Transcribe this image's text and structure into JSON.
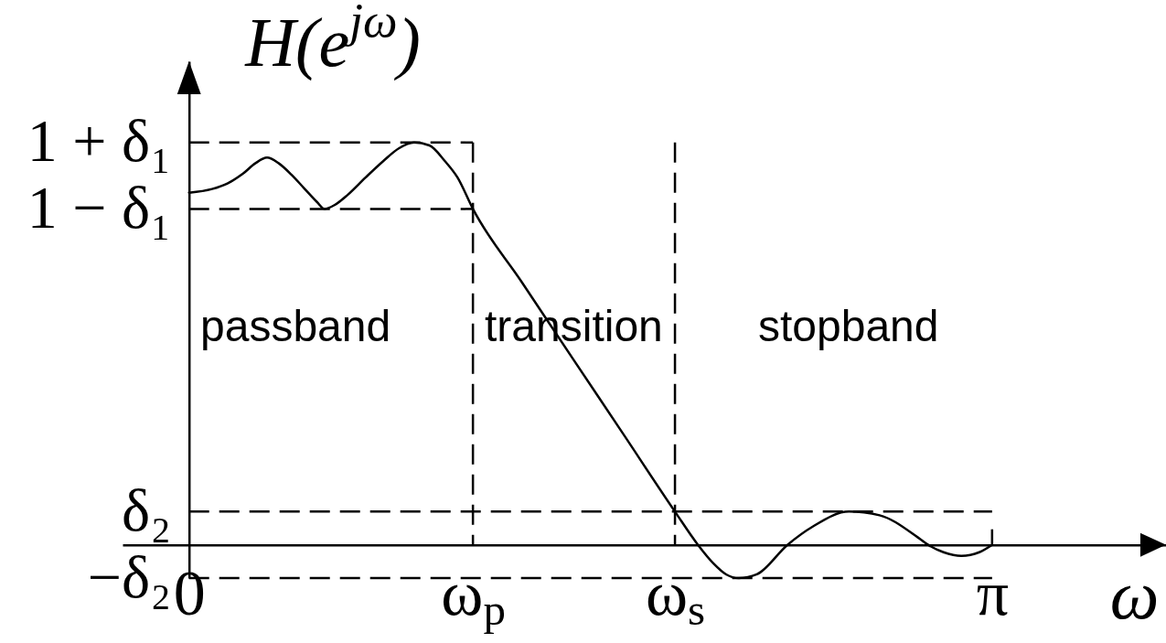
{
  "chart_data": {
    "type": "line",
    "ylabel": "H(e$^{jω}$)",
    "xlabel": "ω",
    "xlim": [
      -0.26,
      3.82
    ],
    "ylim": [
      -0.09,
      1.31
    ],
    "xticks": [
      0,
      {
        "value": 1.11,
        "label": "ω$_{p}$"
      },
      {
        "value": 1.9,
        "label": "ω$_{s}$"
      },
      {
        "value": 3.14,
        "label": "π"
      }
    ],
    "yticks": [
      {
        "value": 1.09,
        "label": "1 + δ₁"
      },
      {
        "value": 0.91,
        "label": "1 − δ₁"
      },
      {
        "value": 0.09,
        "label": "δ₂"
      },
      {
        "value": -0.09,
        "label": "−δ₂"
      }
    ],
    "series": [
      {
        "color": "#000000",
        "line_style": "solid",
        "x": [
          0,
          0.09,
          0.15,
          0.21,
          0.26,
          0.305,
          0.35,
          0.4,
          0.45,
          0.5,
          0.53,
          0.57,
          0.62,
          0.69,
          0.76,
          0.82,
          0.88,
          0.94,
          1.0,
          1.05,
          1.11,
          1.3,
          1.5,
          1.7,
          1.9,
          1.99,
          2.05,
          2.1,
          2.15,
          2.22,
          2.34,
          2.44,
          2.58,
          2.7,
          2.85,
          2.89,
          2.95,
          3.02,
          3.09,
          3.14
        ],
        "values": [
          0.954,
          0.964,
          0.979,
          1.005,
          1.034,
          1.049,
          1.034,
          1.003,
          0.966,
          0.929,
          0.91,
          0.921,
          0.948,
          0.995,
          1.04,
          1.074,
          1.09,
          1.082,
          1.04,
          0.995,
          0.91,
          0.713,
          0.505,
          0.298,
          0.09,
          0,
          -0.05,
          -0.08,
          -0.09,
          -0.08,
          0,
          0.05,
          0.09,
          0.08,
          0.02,
          0,
          -0.02,
          -0.03,
          -0.02,
          0
        ]
      },
      {
        "color": "#000000",
        "line_style": "dashed",
        "x": [
          0,
          1.11
        ],
        "values": [
          1.09,
          1.09
        ]
      },
      {
        "color": "#000000",
        "line_style": "dashed",
        "x": [
          0,
          1.11
        ],
        "values": [
          0.91,
          0.91
        ]
      },
      {
        "color": "#000000",
        "line_style": "dashed",
        "x": [
          1.11,
          1.11
        ],
        "values": [
          1.09,
          0
        ]
      },
      {
        "color": "#000000",
        "line_style": "dashed",
        "x": [
          1.9,
          1.9
        ],
        "values": [
          1.09,
          0
        ]
      },
      {
        "color": "#000000",
        "line_style": "dashed",
        "x": [
          0,
          3.14
        ],
        "values": [
          0.09,
          0.09
        ]
      },
      {
        "color": "#000000",
        "line_style": "dashed",
        "x": [
          0,
          3.14
        ],
        "values": [
          -0.09,
          -0.09
        ]
      }
    ],
    "annotations": [
      "passband",
      "transition",
      "stopband"
    ]
  }
}
